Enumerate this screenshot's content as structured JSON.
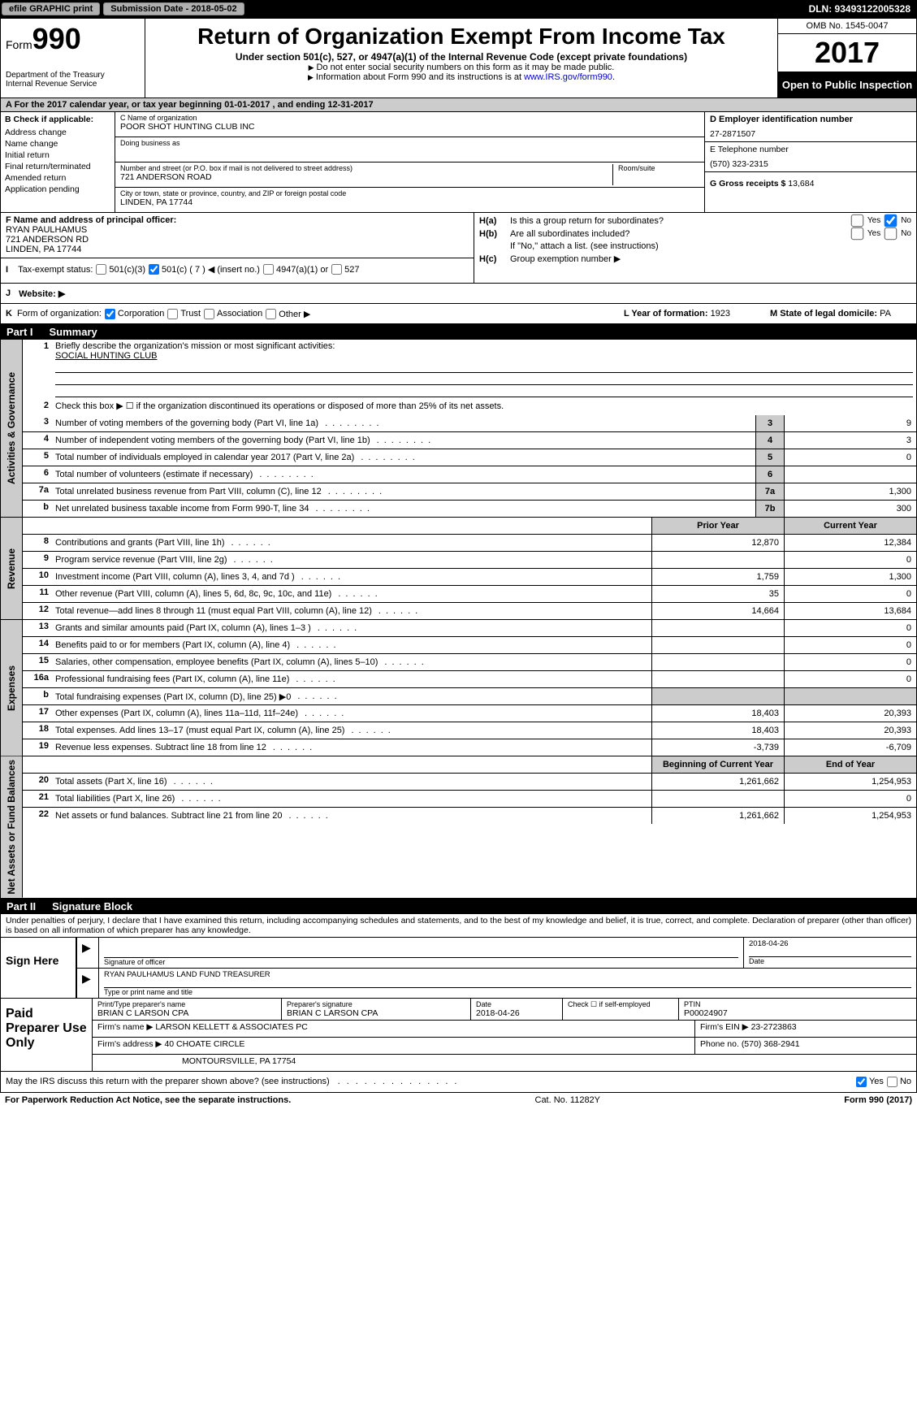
{
  "topbar": {
    "efile": "efile GRAPHIC print",
    "submission_label": "Submission Date - 2018-05-02",
    "dln": "DLN: 93493122005328"
  },
  "header": {
    "form_prefix": "Form",
    "form_num": "990",
    "dept1": "Department of the Treasury",
    "dept2": "Internal Revenue Service",
    "title": "Return of Organization Exempt From Income Tax",
    "subtitle": "Under section 501(c), 527, or 4947(a)(1) of the Internal Revenue Code (except private foundations)",
    "note1": "Do not enter social security numbers on this form as it may be made public.",
    "note2_a": "Information about Form 990 and its instructions is at ",
    "note2_link": "www.IRS.gov/form990",
    "omb": "OMB No. 1545-0047",
    "year": "2017",
    "inspect": "Open to Public Inspection"
  },
  "row_a": "A   For the 2017 calendar year, or tax year beginning 01-01-2017      , and ending 12-31-2017",
  "col_b": {
    "header": "B Check if applicable:",
    "items": [
      "Address change",
      "Name change",
      "Initial return",
      "Final return/terminated",
      "Amended return",
      "Application pending"
    ]
  },
  "col_c": {
    "name_lab": "C Name of organization",
    "name": "POOR SHOT HUNTING CLUB INC",
    "dba_lab": "Doing business as",
    "dba": "",
    "street_lab": "Number and street (or P.O. box if mail is not delivered to street address)",
    "street": "721 ANDERSON ROAD",
    "room_lab": "Room/suite",
    "city_lab": "City or town, state or province, country, and ZIP or foreign postal code",
    "city": "LINDEN, PA  17744"
  },
  "col_d": {
    "ein_lab": "D Employer identification number",
    "ein": "27-2871507",
    "tel_lab": "E Telephone number",
    "tel": "(570) 323-2315",
    "gross_lab": "G Gross receipts $ ",
    "gross": "13,684"
  },
  "col_f": {
    "lab": "F Name and address of principal officer:",
    "l1": "RYAN PAULHAMUS",
    "l2": "721 ANDERSON RD",
    "l3": "LINDEN, PA  17744"
  },
  "col_h": {
    "ha_l": "H(a)",
    "ha_t": "Is this a group return for subordinates?",
    "hb_l": "H(b)",
    "hb_t": "Are all subordinates included?",
    "hb_note": "If \"No,\" attach a list. (see instructions)",
    "hc_l": "H(c)",
    "hc_t": "Group exemption number ▶",
    "yes": "Yes",
    "no": "No"
  },
  "row_i": {
    "lbl": "I",
    "text": "Tax-exempt status:",
    "opts": [
      "501(c)(3)",
      "501(c) ( 7 ) ◀ (insert no.)",
      "4947(a)(1) or",
      "527"
    ]
  },
  "row_j": {
    "lbl": "J",
    "text": "Website: ▶"
  },
  "row_k": {
    "lbl": "K",
    "text": "Form of organization:",
    "opts": [
      "Corporation",
      "Trust",
      "Association",
      "Other ▶"
    ],
    "year_lab": "L Year of formation: ",
    "year_val": "1923",
    "state_lab": "M State of legal domicile: ",
    "state_val": "PA"
  },
  "parts": {
    "p1": "Part I",
    "p1_title": "Summary",
    "p2": "Part II",
    "p2_title": "Signature Block"
  },
  "summary": {
    "vlabels": [
      "Activities & Governance",
      "Revenue",
      "Expenses",
      "Net Assets or Fund Balances"
    ],
    "l1": "Briefly describe the organization's mission or most significant activities:",
    "l1_val": "SOCIAL HUNTING CLUB",
    "l2": "Check this box ▶ ☐  if the organization discontinued its operations or disposed of more than 25% of its net assets.",
    "rows": [
      {
        "n": "3",
        "d": "Number of voting members of the governing body (Part VI, line 1a)",
        "c1": "3",
        "c2": "9"
      },
      {
        "n": "4",
        "d": "Number of independent voting members of the governing body (Part VI, line 1b)",
        "c1": "4",
        "c2": "3"
      },
      {
        "n": "5",
        "d": "Total number of individuals employed in calendar year 2017 (Part V, line 2a)",
        "c1": "5",
        "c2": "0"
      },
      {
        "n": "6",
        "d": "Total number of volunteers (estimate if necessary)",
        "c1": "6",
        "c2": ""
      },
      {
        "n": "7a",
        "d": "Total unrelated business revenue from Part VIII, column (C), line 12",
        "c1": "7a",
        "c2": "1,300"
      },
      {
        "n": "b",
        "d": "Net unrelated business taxable income from Form 990-T, line 34",
        "c1": "7b",
        "c2": "300"
      }
    ],
    "head_prior": "Prior Year",
    "head_curr": "Current Year",
    "rev": [
      {
        "n": "8",
        "d": "Contributions and grants (Part VIII, line 1h)",
        "p": "12,870",
        "c": "12,384"
      },
      {
        "n": "9",
        "d": "Program service revenue (Part VIII, line 2g)",
        "p": "",
        "c": "0"
      },
      {
        "n": "10",
        "d": "Investment income (Part VIII, column (A), lines 3, 4, and 7d )",
        "p": "1,759",
        "c": "1,300"
      },
      {
        "n": "11",
        "d": "Other revenue (Part VIII, column (A), lines 5, 6d, 8c, 9c, 10c, and 11e)",
        "p": "35",
        "c": "0"
      },
      {
        "n": "12",
        "d": "Total revenue—add lines 8 through 11 (must equal Part VIII, column (A), line 12)",
        "p": "14,664",
        "c": "13,684"
      }
    ],
    "exp": [
      {
        "n": "13",
        "d": "Grants and similar amounts paid (Part IX, column (A), lines 1–3 )",
        "p": "",
        "c": "0"
      },
      {
        "n": "14",
        "d": "Benefits paid to or for members (Part IX, column (A), line 4)",
        "p": "",
        "c": "0"
      },
      {
        "n": "15",
        "d": "Salaries, other compensation, employee benefits (Part IX, column (A), lines 5–10)",
        "p": "",
        "c": "0"
      },
      {
        "n": "16a",
        "d": "Professional fundraising fees (Part IX, column (A), line 11e)",
        "p": "",
        "c": "0"
      },
      {
        "n": "b",
        "d": "Total fundraising expenses (Part IX, column (D), line 25) ▶0",
        "p": "shade",
        "c": "shade"
      },
      {
        "n": "17",
        "d": "Other expenses (Part IX, column (A), lines 11a–11d, 11f–24e)",
        "p": "18,403",
        "c": "20,393"
      },
      {
        "n": "18",
        "d": "Total expenses. Add lines 13–17 (must equal Part IX, column (A), line 25)",
        "p": "18,403",
        "c": "20,393"
      },
      {
        "n": "19",
        "d": "Revenue less expenses. Subtract line 18 from line 12",
        "p": "-3,739",
        "c": "-6,709"
      }
    ],
    "head_beg": "Beginning of Current Year",
    "head_end": "End of Year",
    "net": [
      {
        "n": "20",
        "d": "Total assets (Part X, line 16)",
        "p": "1,261,662",
        "c": "1,254,953"
      },
      {
        "n": "21",
        "d": "Total liabilities (Part X, line 26)",
        "p": "",
        "c": "0"
      },
      {
        "n": "22",
        "d": "Net assets or fund balances. Subtract line 21 from line 20",
        "p": "1,261,662",
        "c": "1,254,953"
      }
    ]
  },
  "sig": {
    "penalty": "Under penalties of perjury, I declare that I have examined this return, including accompanying schedules and statements, and to the best of my knowledge and belief, it is true, correct, and complete. Declaration of preparer (other than officer) is based on all information of which preparer has any knowledge.",
    "sign_here": "Sign Here",
    "sig_officer": "Signature of officer",
    "date": "2018-04-26",
    "date_lab": "Date",
    "name": "RYAN PAULHAMUS  LAND FUND TREASURER",
    "name_lab": "Type or print name and title"
  },
  "prep": {
    "label": "Paid Preparer Use Only",
    "pt_name_lab": "Print/Type preparer's name",
    "pt_name": "BRIAN C LARSON CPA",
    "pt_sig_lab": "Preparer's signature",
    "pt_sig": "BRIAN C LARSON CPA",
    "pt_date_lab": "Date",
    "pt_date": "2018-04-26",
    "check_lab": "Check ☐ if self-employed",
    "ptin_lab": "PTIN",
    "ptin": "P00024907",
    "firm_name_lab": "Firm's name     ▶",
    "firm_name": "LARSON KELLETT & ASSOCIATES PC",
    "firm_ein_lab": "Firm's EIN ▶",
    "firm_ein": "23-2723863",
    "firm_addr_lab": "Firm's address ▶",
    "firm_addr1": "40 CHOATE CIRCLE",
    "firm_addr2": "MONTOURSVILLE, PA  17754",
    "phone_lab": "Phone no.",
    "phone": "(570) 368-2941"
  },
  "bottom": {
    "q": "May the IRS discuss this return with the preparer shown above? (see instructions)",
    "yes": "Yes",
    "no": "No"
  },
  "footer": {
    "left": "For Paperwork Reduction Act Notice, see the separate instructions.",
    "mid": "Cat. No. 11282Y",
    "right": "Form 990 (2017)"
  }
}
